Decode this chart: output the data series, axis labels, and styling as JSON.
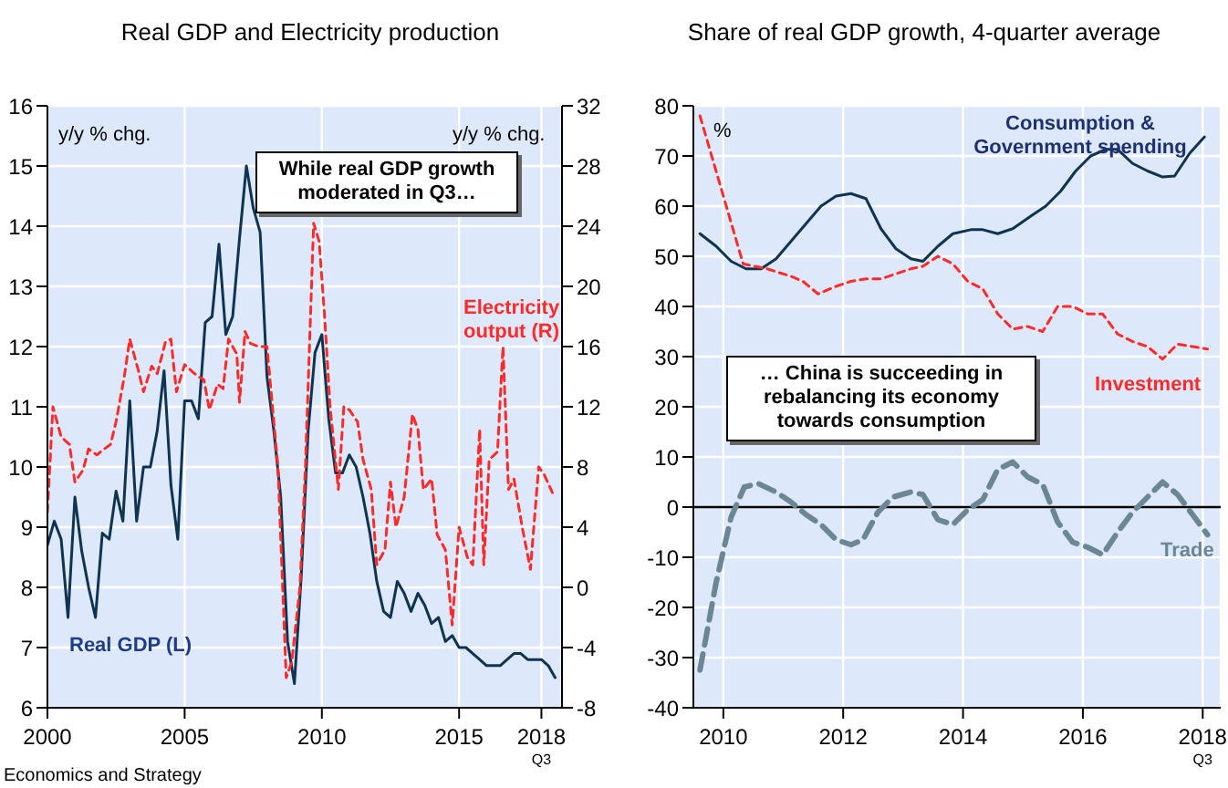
{
  "chart_data": [
    {
      "type": "line",
      "title": "Real GDP and Electricity production",
      "ylabel": "y/y % chg.",
      "y2label": "y/y % chg.",
      "annotations": [
        "While real GDP growth moderated in Q3…",
        "Economics and Strategy"
      ],
      "xlim": [
        2000,
        2018.75
      ],
      "xticks": [
        2000,
        2005,
        2010,
        2015,
        {
          "value": 2018,
          "label": "2018\nQ3"
        }
      ],
      "ylim": [
        6,
        16
      ],
      "yticks": [
        6,
        7,
        8,
        9,
        10,
        11,
        12,
        13,
        14,
        15,
        16
      ],
      "y2lim": [
        -8,
        32
      ],
      "y2ticks": [
        -8,
        -4,
        0,
        4,
        8,
        12,
        16,
        20,
        24,
        28,
        32
      ],
      "grid": true,
      "legend": false,
      "series": [
        {
          "name": "Real GDP (L)",
          "color": "#0f3350",
          "line_style": "solid",
          "x": [
            2000,
            2000.25,
            2000.5,
            2000.75,
            2001,
            2001.25,
            2001.5,
            2001.75,
            2002,
            2002.25,
            2002.5,
            2002.75,
            2003,
            2003.25,
            2003.5,
            2003.75,
            2004,
            2004.25,
            2004.5,
            2004.75,
            2005,
            2005.25,
            2005.5,
            2005.75,
            2006,
            2006.25,
            2006.5,
            2006.75,
            2007,
            2007.25,
            2007.5,
            2007.75,
            2008,
            2008.25,
            2008.5,
            2008.75,
            2009,
            2009.25,
            2009.5,
            2009.75,
            2010,
            2010.25,
            2010.5,
            2010.75,
            2011,
            2011.25,
            2011.5,
            2011.75,
            2012,
            2012.25,
            2012.5,
            2012.75,
            2013,
            2013.25,
            2013.5,
            2013.75,
            2014,
            2014.25,
            2014.5,
            2014.75,
            2015,
            2015.25,
            2015.5,
            2015.75,
            2016,
            2016.25,
            2016.5,
            2016.75,
            2017,
            2017.25,
            2017.5,
            2017.75,
            2018,
            2018.25,
            2018.5
          ],
          "values": [
            8.7,
            9.1,
            8.8,
            7.5,
            9.5,
            8.6,
            8.0,
            7.5,
            8.9,
            8.8,
            9.6,
            9.1,
            11.1,
            9.1,
            10.0,
            10.0,
            10.6,
            11.6,
            9.7,
            8.8,
            11.1,
            11.1,
            10.8,
            12.4,
            12.5,
            13.7,
            12.2,
            12.5,
            13.8,
            15.0,
            14.3,
            13.9,
            11.5,
            10.6,
            9.5,
            7.1,
            6.4,
            8.2,
            10.6,
            11.9,
            12.2,
            10.8,
            9.9,
            9.9,
            10.2,
            10.0,
            9.5,
            8.9,
            8.1,
            7.6,
            7.5,
            8.1,
            7.9,
            7.6,
            7.9,
            7.7,
            7.4,
            7.5,
            7.1,
            7.2,
            7.0,
            7.0,
            6.9,
            6.8,
            6.7,
            6.7,
            6.7,
            6.8,
            6.9,
            6.9,
            6.8,
            6.8,
            6.8,
            6.7,
            6.5
          ]
        },
        {
          "name": "Electricity output (R)",
          "color": "#ff2a2a",
          "line_style": "dashed",
          "axis": "y2",
          "x": [
            2000,
            2000.2,
            2000.5,
            2000.8,
            2001,
            2001.3,
            2001.5,
            2001.8,
            2002,
            2002.3,
            2002.5,
            2002.8,
            2003,
            2003.3,
            2003.5,
            2003.8,
            2004,
            2004.3,
            2004.5,
            2004.7,
            2005,
            2005.3,
            2005.5,
            2005.7,
            2005.9,
            2006.2,
            2006.4,
            2006.6,
            2006.9,
            2007,
            2007.2,
            2007.4,
            2007.7,
            2008,
            2008.2,
            2008.4,
            2008.7,
            2008.9,
            2009.2,
            2009.4,
            2009.7,
            2009.9,
            2010.1,
            2010.3,
            2010.6,
            2010.8,
            2011,
            2011.3,
            2011.5,
            2011.8,
            2012,
            2012.3,
            2012.5,
            2012.7,
            2013,
            2013.3,
            2013.5,
            2013.7,
            2014,
            2014.2,
            2014.5,
            2014.75,
            2015,
            2015.3,
            2015.5,
            2015.75,
            2015.9,
            2016.1,
            2016.4,
            2016.6,
            2016.8,
            2017,
            2017.3,
            2017.6,
            2017.9,
            2018.1,
            2018.4
          ],
          "values": [
            5,
            12,
            10,
            9.5,
            7,
            7.8,
            9.2,
            8.8,
            9.1,
            9.5,
            11,
            14,
            16.5,
            14.5,
            13,
            14.7,
            14.2,
            16.3,
            16.5,
            13,
            14.8,
            14.3,
            14,
            13.8,
            11.8,
            13.5,
            13.2,
            16.5,
            15.5,
            12.3,
            17,
            16.2,
            16,
            16,
            12,
            8,
            -6,
            -5,
            0,
            8,
            24.2,
            23,
            18,
            12,
            6.5,
            12,
            11.8,
            11,
            8.5,
            6.5,
            1.5,
            2.5,
            7,
            4,
            6,
            11.5,
            10.5,
            6.5,
            7.2,
            3.5,
            2.5,
            -2.5,
            4,
            2,
            1.5,
            10.5,
            1.5,
            8.5,
            9,
            16,
            6.5,
            7.2,
            4,
            1.2,
            8,
            7.5,
            6.3
          ]
        }
      ]
    },
    {
      "type": "line",
      "title": "Share of real GDP growth, 4-quarter average",
      "ylabel": "%",
      "annotations": [
        "… China is succeeding in rebalancing its economy towards consumption"
      ],
      "xlim": [
        2009.5,
        2018.3
      ],
      "xticks": [
        2010,
        2012,
        2014,
        2016,
        {
          "value": 2018,
          "label": "2018\nQ3"
        }
      ],
      "ylim": [
        -40,
        80
      ],
      "yticks": [
        -40,
        -30,
        -20,
        -10,
        0,
        10,
        20,
        30,
        40,
        50,
        60,
        70,
        80
      ],
      "grid": true,
      "legend": false,
      "ref_lines": [
        {
          "axis": "y",
          "value": 0,
          "color": "#000000"
        }
      ],
      "series": [
        {
          "name": "Consumption & Government spending",
          "color": "#0f3350",
          "line_style": "solid",
          "x": [
            2009.61,
            2009.88,
            2010.13,
            2010.38,
            2010.63,
            2010.88,
            2011.13,
            2011.38,
            2011.63,
            2011.88,
            2012.13,
            2012.38,
            2012.63,
            2012.88,
            2013.13,
            2013.33,
            2013.58,
            2013.83,
            2014.13,
            2014.33,
            2014.58,
            2014.83,
            2015.13,
            2015.38,
            2015.63,
            2015.88,
            2016.13,
            2016.38,
            2016.58,
            2016.83,
            2017.08,
            2017.33,
            2017.53,
            2017.78,
            2018.03
          ],
          "values": [
            54.5,
            52,
            49,
            47.5,
            47.5,
            49.5,
            53,
            56.5,
            60,
            62,
            62.5,
            61.5,
            55.5,
            51.5,
            49.5,
            49,
            52,
            54.5,
            55.3,
            55.3,
            54.5,
            55.5,
            58,
            60,
            63,
            67,
            70,
            71.3,
            71.3,
            68.5,
            67,
            65.8,
            66,
            70.5,
            73.8
          ]
        },
        {
          "name": "Investment",
          "color": "#ff2a2a",
          "line_style": "dashed",
          "x": [
            2009.61,
            2010.33,
            2010.73,
            2011.13,
            2011.33,
            2011.58,
            2011.88,
            2012.13,
            2012.38,
            2012.63,
            2012.88,
            2013.13,
            2013.33,
            2013.58,
            2013.83,
            2014.08,
            2014.33,
            2014.58,
            2014.83,
            2015.08,
            2015.33,
            2015.58,
            2015.83,
            2016.08,
            2016.33,
            2016.58,
            2016.83,
            2017.08,
            2017.33,
            2017.58,
            2017.83,
            2018.08
          ],
          "values": [
            78,
            48.5,
            47.5,
            46,
            45,
            42.5,
            44,
            45,
            45.5,
            45.5,
            46.5,
            47.5,
            48,
            50,
            48.5,
            45,
            43.5,
            38.5,
            35.5,
            36,
            35,
            40,
            40,
            38.5,
            38.5,
            34.5,
            33,
            32,
            29.5,
            32.5,
            32,
            31.5
          ]
        },
        {
          "name": "Trade",
          "color": "#6b8796",
          "line_style": "dashed",
          "x": [
            2009.61,
            2009.88,
            2010.13,
            2010.35,
            2010.58,
            2010.88,
            2011.13,
            2011.38,
            2011.63,
            2011.88,
            2012.13,
            2012.33,
            2012.58,
            2012.83,
            2013.13,
            2013.33,
            2013.58,
            2013.83,
            2014.08,
            2014.33,
            2014.58,
            2014.83,
            2015.08,
            2015.33,
            2015.58,
            2015.83,
            2016.08,
            2016.33,
            2016.58,
            2016.83,
            2017.08,
            2017.33,
            2017.58,
            2017.83,
            2018.08
          ],
          "values": [
            -32.5,
            -15,
            -2,
            4,
            4.7,
            3,
            1,
            -1.5,
            -3.5,
            -6.5,
            -7.5,
            -6.5,
            -1,
            2,
            3,
            2.5,
            -2.5,
            -3.5,
            -0.5,
            1.5,
            7.5,
            9,
            6,
            4.5,
            -3,
            -7,
            -8,
            -9.5,
            -5,
            -1,
            2,
            5,
            2.5,
            -1.5,
            -5.5
          ]
        }
      ]
    }
  ]
}
